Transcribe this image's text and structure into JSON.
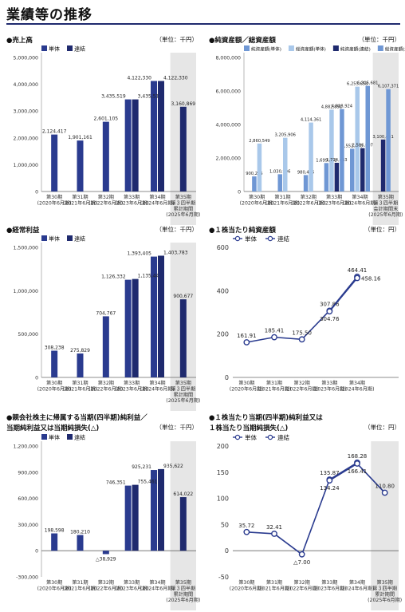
{
  "page_title": "業績等の推移",
  "colors": {
    "single": "#2a3b8f",
    "consolidated": "#1f2a6e",
    "light1": "#a9c8ea",
    "light2": "#6f97d4",
    "shade": "#e6e6e6",
    "line": "#2a3b8f"
  },
  "chart_data": [
    {
      "id": "sales",
      "type": "bar",
      "title": "●売上高",
      "unit": "（単位：千円）",
      "categories": [
        "第30期\n(2020年6月期)",
        "第31期\n(2021年6月期)",
        "第32期\n(2022年6月期)",
        "第33期\n(2023年6月期)",
        "第34期\n(2024年6月期)",
        "第35期\n第３四半期\n累計期間\n(2025年6月期)"
      ],
      "legend": [
        "単体",
        "連結"
      ],
      "series": [
        {
          "name": "単体",
          "values": [
            2124417,
            1901161,
            2601105,
            3435519,
            4122330,
            null
          ],
          "labels": [
            "2,124,417",
            "1,901,161",
            "2,601,105",
            "3,435,519",
            "4,122,330",
            ""
          ]
        },
        {
          "name": "連結",
          "values": [
            null,
            null,
            null,
            3435519,
            4122330,
            3160869
          ],
          "labels": [
            "",
            "",
            "",
            "3,435,519",
            "4,122,330",
            "3,160,869"
          ]
        }
      ],
      "ylim": [
        0,
        5000000
      ],
      "yticks": [
        "0",
        "1,000,000",
        "2,000,000",
        "3,000,000",
        "4,000,000",
        "5,000,000"
      ]
    },
    {
      "id": "assets",
      "type": "bar",
      "title": "●純資産額／総資産額",
      "unit": "（単位：千円）",
      "categories": [
        "第30期\n(2020年6月期)",
        "第31期\n(2021年6月期)",
        "第32期\n(2022年6月期)",
        "第33期\n(2023年6月期)",
        "第34期\n(2024年6月期)",
        "第35期\n第３四半期\n会計期間末\n(2025年6月期)"
      ],
      "legend": [
        "純資産額(単体)",
        "総資産額(単体)",
        "純資産額(連結)",
        "総資産額(連結)"
      ],
      "series": [
        {
          "name": "純資産額(単体)",
          "values": [
            900225,
            1030906,
            980465,
            1699161,
            2552040,
            null
          ],
          "labels": [
            "900,225",
            "1,030,906",
            "980,465",
            "1,699,161",
            "2,552,040",
            ""
          ]
        },
        {
          "name": "総資産額(単体)",
          "values": [
            2860549,
            3205906,
            4114361,
            4882891,
            6255658,
            null
          ],
          "labels": [
            "2,860,549",
            "3,205,906",
            "4,114,361",
            "4,882,891",
            "6,255,658",
            ""
          ]
        },
        {
          "name": "純資産額(連結)",
          "values": [
            null,
            null,
            null,
            1714463,
            2586697,
            3100451
          ],
          "labels": [
            "",
            "",
            "",
            "1,714,463",
            "2,586,697",
            "3,100,451"
          ]
        },
        {
          "name": "総資産額(連結)",
          "values": [
            null,
            null,
            null,
            4918924,
            6305681,
            6107371
          ],
          "labels": [
            "",
            "",
            "",
            "4,918,924",
            "6,305,681",
            "6,107,371"
          ]
        }
      ],
      "ylim": [
        0,
        8000000
      ],
      "yticks": [
        "0",
        "2,000,000",
        "4,000,000",
        "6,000,000",
        "8,000,000"
      ]
    },
    {
      "id": "ordinary",
      "type": "bar",
      "title": "●経常利益",
      "unit": "（単位：千円）",
      "categories": [
        "第30期\n(2020年6月期)",
        "第31期\n(2021年6月期)",
        "第32期\n(2022年6月期)",
        "第33期\n(2023年6月期)",
        "第34期\n(2024年6月期)",
        "第35期\n第３四半期\n累計期間\n(2025年6月期)"
      ],
      "legend": [
        "単体",
        "連結"
      ],
      "series": [
        {
          "name": "単体",
          "values": [
            308238,
            275829,
            704767,
            1126332,
            1393405,
            null
          ],
          "labels": [
            "308,238",
            "275,829",
            "704,767",
            "1,126,332",
            "1,393,405",
            ""
          ]
        },
        {
          "name": "連結",
          "values": [
            null,
            null,
            null,
            1135442,
            1403783,
            900677
          ],
          "labels": [
            "",
            "",
            "",
            "1,135,442",
            "1,403,783",
            "900,677"
          ]
        }
      ],
      "ylim": [
        0,
        1500000
      ],
      "yticks": [
        "0",
        "500,000",
        "1,000,000",
        "1,500,000"
      ]
    },
    {
      "id": "bps",
      "type": "line",
      "title": "●１株当たり純資産額",
      "unit": "（単位：円）",
      "categories": [
        "第30期\n(2020年6月期)",
        "第31期\n(2021年6月期)",
        "第32期\n(2022年6月期)",
        "第33期\n(2023年6月期)",
        "第34期\n(2024年6月期)"
      ],
      "legend": [
        "単体",
        "連結"
      ],
      "series": [
        {
          "name": "単体",
          "values": [
            161.91,
            185.41,
            175.5,
            307.86,
            464.41
          ],
          "labels": [
            "161.91",
            "185.41",
            "175.50",
            "307.86",
            "464.41"
          ]
        },
        {
          "name": "連結",
          "values": [
            null,
            null,
            null,
            304.76,
            458.16
          ],
          "labels": [
            "",
            "",
            "",
            "304.76",
            "458.16"
          ]
        }
      ],
      "ylim": [
        0,
        600
      ],
      "yticks": [
        "0",
        "200",
        "400",
        "600"
      ]
    },
    {
      "id": "netincome",
      "type": "bar",
      "title": "●親会社株主に帰属する当期(四半期)純利益／",
      "title2": "当期純利益又は当期純損失(△)",
      "unit": "（単位：千円）",
      "categories": [
        "第30期\n(2020年6月期)",
        "第31期\n(2021年6月期)",
        "第32期\n(2022年6月期)",
        "第33期\n(2023年6月期)",
        "第34期\n(2024年6月期)",
        "第35期\n第３四半期\n累計期間\n(2025年6月期)"
      ],
      "legend": [
        "単体",
        "連結"
      ],
      "series": [
        {
          "name": "単体",
          "values": [
            198598,
            180210,
            -38929,
            746351,
            925231,
            null
          ],
          "labels": [
            "198,598",
            "180,210",
            "△38,929",
            "746,351",
            "925,231",
            ""
          ]
        },
        {
          "name": "連結",
          "values": [
            null,
            null,
            null,
            755461,
            935622,
            614022
          ],
          "labels": [
            "",
            "",
            "",
            "755,461",
            "935,622",
            "614,022"
          ]
        }
      ],
      "ylim": [
        -300000,
        1200000
      ],
      "yticks": [
        "-300,000",
        "0",
        "300,000",
        "600,000",
        "900,000",
        "1,200,000"
      ]
    },
    {
      "id": "eps",
      "type": "line",
      "title": "●１株当たり当期(四半期)純利益又は",
      "title2": "１株当たり当期純損失(△)",
      "unit": "（単位：円）",
      "categories": [
        "第30期\n(2020年6月期)",
        "第31期\n(2021年6月期)",
        "第32期\n(2022年6月期)",
        "第33期\n(2023年6月期)",
        "第34期\n(2024年6月期)",
        "第35期\n第３四半期\n累計期間\n(2025年6月期)"
      ],
      "legend": [
        "単体",
        "連結"
      ],
      "series": [
        {
          "name": "単体",
          "values": [
            35.72,
            32.41,
            -7.0,
            135.87,
            168.28,
            null
          ],
          "labels": [
            "35.72",
            "32.41",
            "△7.00",
            "135.87",
            "168.28",
            ""
          ]
        },
        {
          "name": "連結",
          "values": [
            null,
            null,
            null,
            134.24,
            166.41,
            110.8
          ],
          "labels": [
            "",
            "",
            "",
            "134.24",
            "166.41",
            "110.80"
          ]
        }
      ],
      "ylim": [
        -50,
        200
      ],
      "yticks": [
        "-50",
        "0",
        "50",
        "100",
        "150",
        "200"
      ]
    }
  ]
}
